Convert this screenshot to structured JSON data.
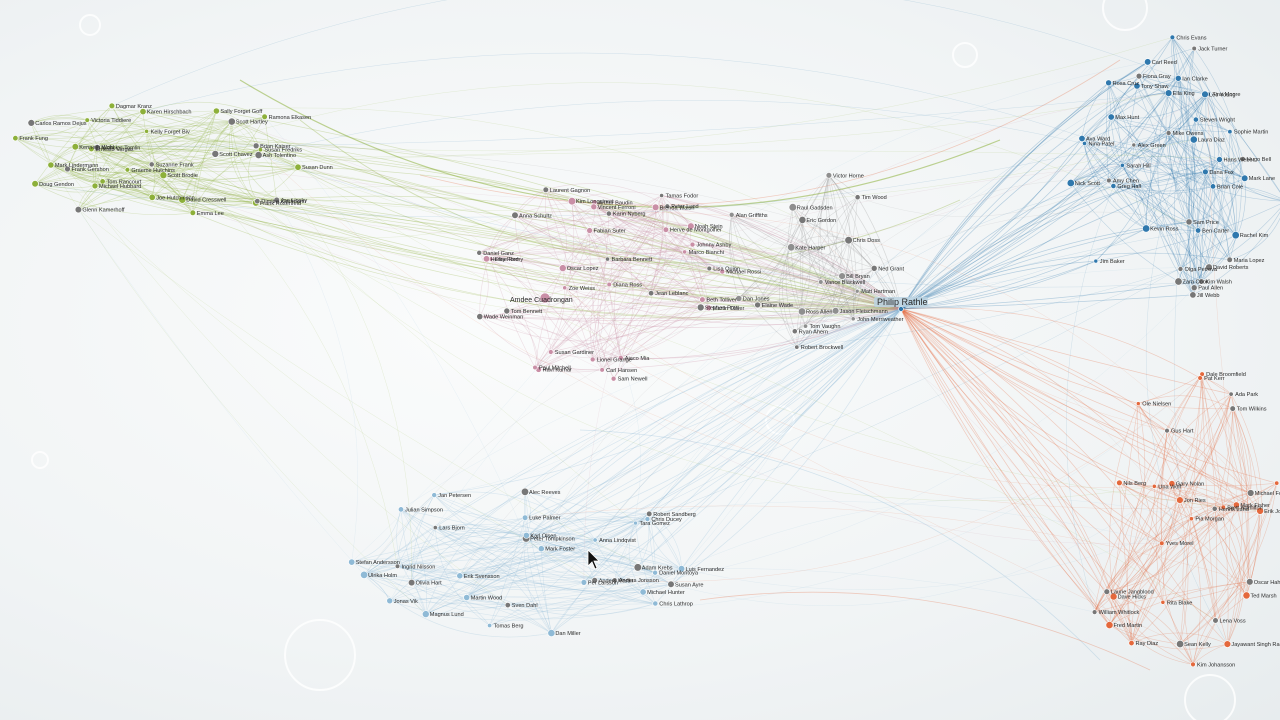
{
  "colors": {
    "green": "#8db03a",
    "pink": "#c98fa6",
    "blue": "#2f78ad",
    "lightblue": "#8fbad6",
    "orange": "#e4683c",
    "gray": "#8f8f8f"
  },
  "hub": {
    "name": "Philip Rathle"
  },
  "secondary_hub": {
    "name": "Amdee Cuadrongan"
  },
  "clusters": [
    {
      "id": "green",
      "color_key": "green",
      "labels": [
        "Ash Tolentino",
        "Karen Hirschbach",
        "Tom Rancourt",
        "Brian Kaiser",
        "Kenneth Wohl",
        "Frank Rosenfeld",
        "Scott Hartley",
        "Joe Hutchinson",
        "David Cresswell",
        "Dimitra Kaufmann",
        "Frank Fung",
        "Kelly Forget Biv",
        "Nicholas Tomlin",
        "Sally Forget Goff",
        "Mark Lindermann",
        "Suzanne Frank",
        "Susan Dunn",
        "Ramona Elkasen",
        "Carlos Ramos Dejus",
        "Victoria Tiddiere",
        "Michael Hubbard",
        "Glenn Kamerhoff",
        "Graeme Hutchins",
        "Ernesto Vargas",
        "Frank Gershon",
        "Scott Brodie",
        "Susan Fredriks",
        "Joe Lipsky",
        "Doug Gendon",
        "Emma Lee",
        "Scott Chavez",
        "Dagmar Kranz"
      ]
    },
    {
      "id": "pink",
      "color_key": "pink",
      "labels": [
        "Daniel Ganz",
        "Arthur Baudin",
        "Ajaco Mia",
        "Barbara Bennett",
        "Lionel Grange",
        "Vincent Ferroni",
        "Laurent Gagnon",
        "Michael Rossi",
        "Herve de Montgolfier",
        "Karin Nyberg",
        "Fabian Suter",
        "Beth Tolliver",
        "Wade Weinman",
        "Susan Gardiner",
        "Brenda Walsh",
        "Tamas Fodor",
        "Oscar Lopez",
        "Marco Bianchi",
        "Anna Schultz",
        "Zoe Weiss",
        "Sam Newell",
        "Peter Lund",
        "Diana Ross",
        "Carl Hansen",
        "Stephen Pratt",
        "Kim Longstreet",
        "Elise Remy",
        "Tom Bennett",
        "Martin Oliver",
        "Johnny Ashby",
        "Lisa Quinn",
        "Ravi Kumar",
        "Paul Mitchell",
        "Jean Leblanc",
        "Henry Ford",
        "Noah Stein"
      ]
    },
    {
      "id": "center",
      "color_key": "gray",
      "labels": [
        "Ryan Ahern",
        "John Merriweather",
        "Matt Hartman",
        "Tim Wood",
        "Alan Griffiths",
        "Dan Jones",
        "Robert Brockwell",
        "Raul Gadsden",
        "Bill Bryan",
        "Eric Gordon",
        "Jason Fleischmann",
        "Vance Blackwell",
        "Chris Doss",
        "Tom Vaughn",
        "Kate Harper",
        "Elaine Wade",
        "Victor Horne",
        "Ross Allen",
        "Ned Grant"
      ]
    },
    {
      "id": "lightblue",
      "color_key": "lightblue",
      "labels": [
        "Peter Tompkinson",
        "Chris Ducey",
        "Daniel Montoya",
        "Susan Ayre",
        "Tara Gomez",
        "Chris Lathrop",
        "Adam Krebs",
        "Luis Fernandez",
        "Jonas Vik",
        "Alec Reeves",
        "Martin Wood",
        "Mark Foster",
        "Anders Martin",
        "Stefan Andersson",
        "Karl Olsen",
        "Lars Bjorn",
        "Jan Petersen",
        "Michael Hunter",
        "Robert Sandberg",
        "Anna Lindqvist",
        "Dan Miller",
        "Olivia Hart",
        "Tomas Berg",
        "Julian Simpson",
        "Anders Jonsson",
        "Per Larsson",
        "Erik Svensson",
        "Ingrid Nilsson",
        "Magnus Lund",
        "Ulrika Holm",
        "Sven Dahl",
        "Luke Palmer"
      ]
    },
    {
      "id": "blue",
      "color_key": "blue",
      "labels": [
        "David Roberts",
        "Sarah Hill",
        "Brian Cole",
        "Amy Chen",
        "Kevin Ross",
        "Laura Diaz",
        "Mike Owens",
        "Nina Patel",
        "Chris Evans",
        "Jack Turner",
        "Rachel Kim",
        "Steven Wright",
        "Olga Petrova",
        "Hans Weber",
        "Ian Clarke",
        "Maria Lopez",
        "Greg Hall",
        "Tina Moore",
        "Paul Allen",
        "Jim Baker",
        "Sophie Martin",
        "Alex Green",
        "Nick Scott",
        "Ben Carter",
        "Fiona Gray",
        "Leo Young",
        "Ella King",
        "Sam Price",
        "Mark Lane",
        "Rob Stone",
        "Kim Walsh",
        "Dana Fox",
        "Carl Reed",
        "Jill Webb",
        "Tony Shaw",
        "Rosa Cruz",
        "Hugo Bell",
        "Ava Ward",
        "Max Hunt",
        "Zara Cook"
      ]
    },
    {
      "id": "orange",
      "color_key": "orange",
      "labels": [
        "William Whitlock",
        "Brett Hamilton",
        "Fred Martin",
        "Michael Ford",
        "Jayawant Singh Rao",
        "Dale Broomfield",
        "Laurie Jangblood",
        "Kim Johansson",
        "Erik Johansen",
        "Sean Kelly",
        "Mark Fisher",
        "Pia Morgan",
        "Henrik Lund",
        "Dave Hicks",
        "Ole Nielsen",
        "Tom Wilkins",
        "Gary Nolan",
        "Rita Blake",
        "Oscar Hahn",
        "Yves Morel",
        "Nils Berg",
        "Ada Park",
        "Jon Ries",
        "Pat Kerr",
        "Lena Voss",
        "Ray Diaz",
        "Ivy Long",
        "Gus Hart",
        "Una Wolf",
        "Ted Marsh"
      ]
    }
  ]
}
